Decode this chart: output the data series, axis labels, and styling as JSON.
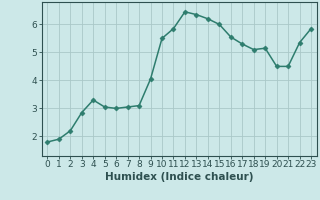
{
  "x": [
    0,
    1,
    2,
    3,
    4,
    5,
    6,
    7,
    8,
    9,
    10,
    11,
    12,
    13,
    14,
    15,
    16,
    17,
    18,
    19,
    20,
    21,
    22,
    23
  ],
  "y": [
    1.8,
    1.9,
    2.2,
    2.85,
    3.3,
    3.05,
    3.0,
    3.05,
    3.1,
    4.05,
    5.5,
    5.85,
    6.45,
    6.35,
    6.2,
    6.0,
    5.55,
    5.3,
    5.1,
    5.15,
    4.5,
    4.5,
    5.35,
    5.85
  ],
  "line_color": "#2e7d6e",
  "marker": "D",
  "markersize": 2.5,
  "linewidth": 1.1,
  "bg_color": "#cce8e8",
  "grid_color": "#aac8c8",
  "xlabel": "Humidex (Indice chaleur)",
  "xlim": [
    -0.5,
    23.5
  ],
  "ylim": [
    1.3,
    6.8
  ],
  "yticks": [
    2,
    3,
    4,
    5,
    6
  ],
  "xticks": [
    0,
    1,
    2,
    3,
    4,
    5,
    6,
    7,
    8,
    9,
    10,
    11,
    12,
    13,
    14,
    15,
    16,
    17,
    18,
    19,
    20,
    21,
    22,
    23
  ],
  "xlabel_fontsize": 7.5,
  "tick_fontsize": 6.5,
  "tick_color": "#2e5050",
  "axis_color": "#2e5050"
}
